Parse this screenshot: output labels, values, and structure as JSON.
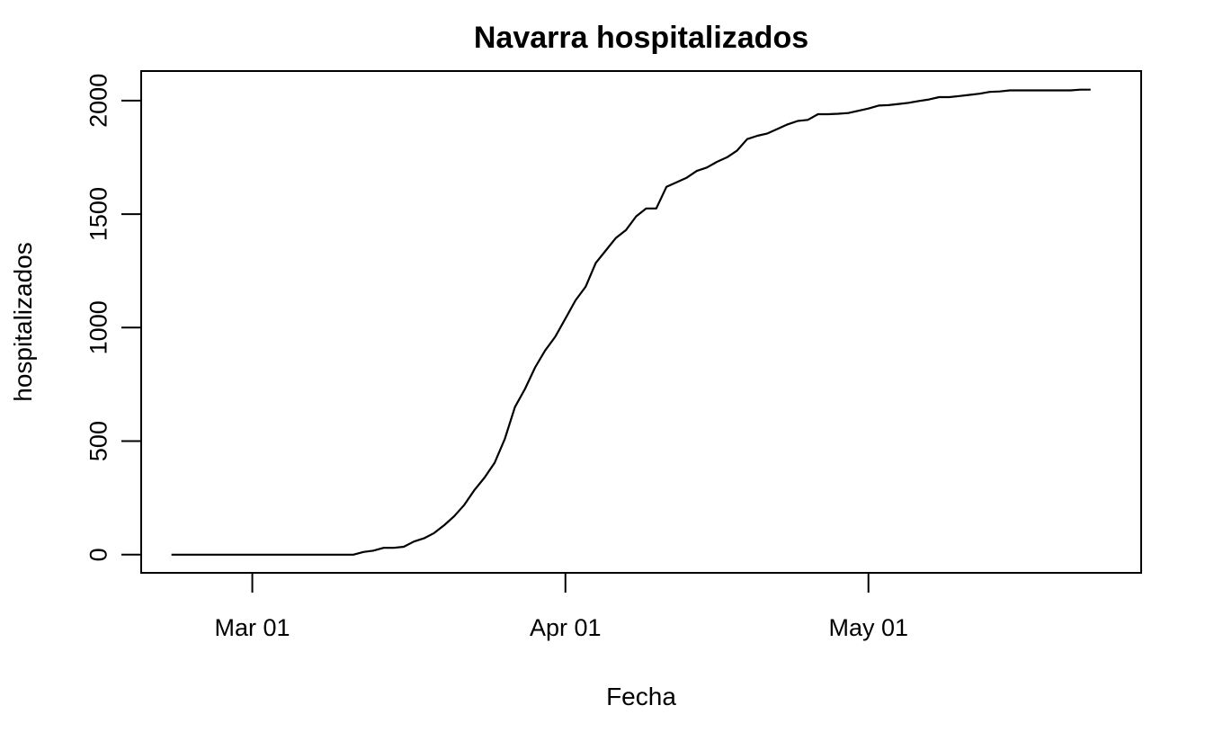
{
  "chart_data": {
    "type": "line",
    "title": "Navarra hospitalizados",
    "xlabel": "Fecha",
    "ylabel": "hospitalizados",
    "xlim": [
      "2020-02-19",
      "2020-05-28"
    ],
    "ylim": [
      -80,
      2130
    ],
    "x_ticks": [
      {
        "date": "2020-03-01",
        "label": "Mar 01"
      },
      {
        "date": "2020-04-01",
        "label": "Apr 01"
      },
      {
        "date": "2020-05-01",
        "label": "May 01"
      }
    ],
    "y_ticks": [
      0,
      500,
      1000,
      1500,
      2000
    ],
    "legend": "none",
    "grid": false,
    "color": "#000000",
    "series": [
      {
        "x": [
          "2020-02-22",
          "2020-02-23",
          "2020-02-24",
          "2020-02-25",
          "2020-02-26",
          "2020-02-27",
          "2020-02-28",
          "2020-02-29",
          "2020-03-01",
          "2020-03-02",
          "2020-03-03",
          "2020-03-04",
          "2020-03-05",
          "2020-03-06",
          "2020-03-07",
          "2020-03-08",
          "2020-03-09",
          "2020-03-10",
          "2020-03-11",
          "2020-03-12",
          "2020-03-13",
          "2020-03-14",
          "2020-03-15",
          "2020-03-16",
          "2020-03-17",
          "2020-03-18",
          "2020-03-19",
          "2020-03-20",
          "2020-03-21",
          "2020-03-22",
          "2020-03-23",
          "2020-03-24",
          "2020-03-25",
          "2020-03-26",
          "2020-03-27",
          "2020-03-28",
          "2020-03-29",
          "2020-03-30",
          "2020-03-31",
          "2020-04-01",
          "2020-04-02",
          "2020-04-03",
          "2020-04-04",
          "2020-04-05",
          "2020-04-06",
          "2020-04-07",
          "2020-04-08",
          "2020-04-09",
          "2020-04-10",
          "2020-04-11",
          "2020-04-12",
          "2020-04-13",
          "2020-04-14",
          "2020-04-15",
          "2020-04-16",
          "2020-04-17",
          "2020-04-18",
          "2020-04-19",
          "2020-04-20",
          "2020-04-21",
          "2020-04-22",
          "2020-04-23",
          "2020-04-24",
          "2020-04-25",
          "2020-04-26",
          "2020-04-27",
          "2020-04-28",
          "2020-04-29",
          "2020-04-30",
          "2020-05-01",
          "2020-05-02",
          "2020-05-03",
          "2020-05-04",
          "2020-05-05",
          "2020-05-06",
          "2020-05-07",
          "2020-05-08",
          "2020-05-09",
          "2020-05-10",
          "2020-05-11",
          "2020-05-12",
          "2020-05-13",
          "2020-05-14",
          "2020-05-15",
          "2020-05-16",
          "2020-05-17",
          "2020-05-18",
          "2020-05-19",
          "2020-05-20",
          "2020-05-21",
          "2020-05-22",
          "2020-05-23"
        ],
        "y": [
          0,
          0,
          0,
          0,
          0,
          0,
          0,
          0,
          0,
          0,
          0,
          0,
          0,
          0,
          0,
          0,
          0,
          0,
          0,
          12,
          18,
          30,
          30,
          35,
          58,
          72,
          95,
          130,
          170,
          220,
          285,
          340,
          405,
          510,
          650,
          730,
          825,
          900,
          960,
          1040,
          1120,
          1180,
          1285,
          1340,
          1395,
          1430,
          1490,
          1525,
          1525,
          1620,
          1640,
          1660,
          1690,
          1705,
          1730,
          1750,
          1780,
          1830,
          1845,
          1855,
          1875,
          1895,
          1910,
          1915,
          1940,
          1940,
          1942,
          1945,
          1955,
          1965,
          1978,
          1980,
          1985,
          1990,
          1998,
          2005,
          2015,
          2015,
          2020,
          2025,
          2030,
          2038,
          2040,
          2045,
          2045,
          2045,
          2045,
          2045,
          2045,
          2045,
          2048,
          2048
        ]
      }
    ]
  }
}
